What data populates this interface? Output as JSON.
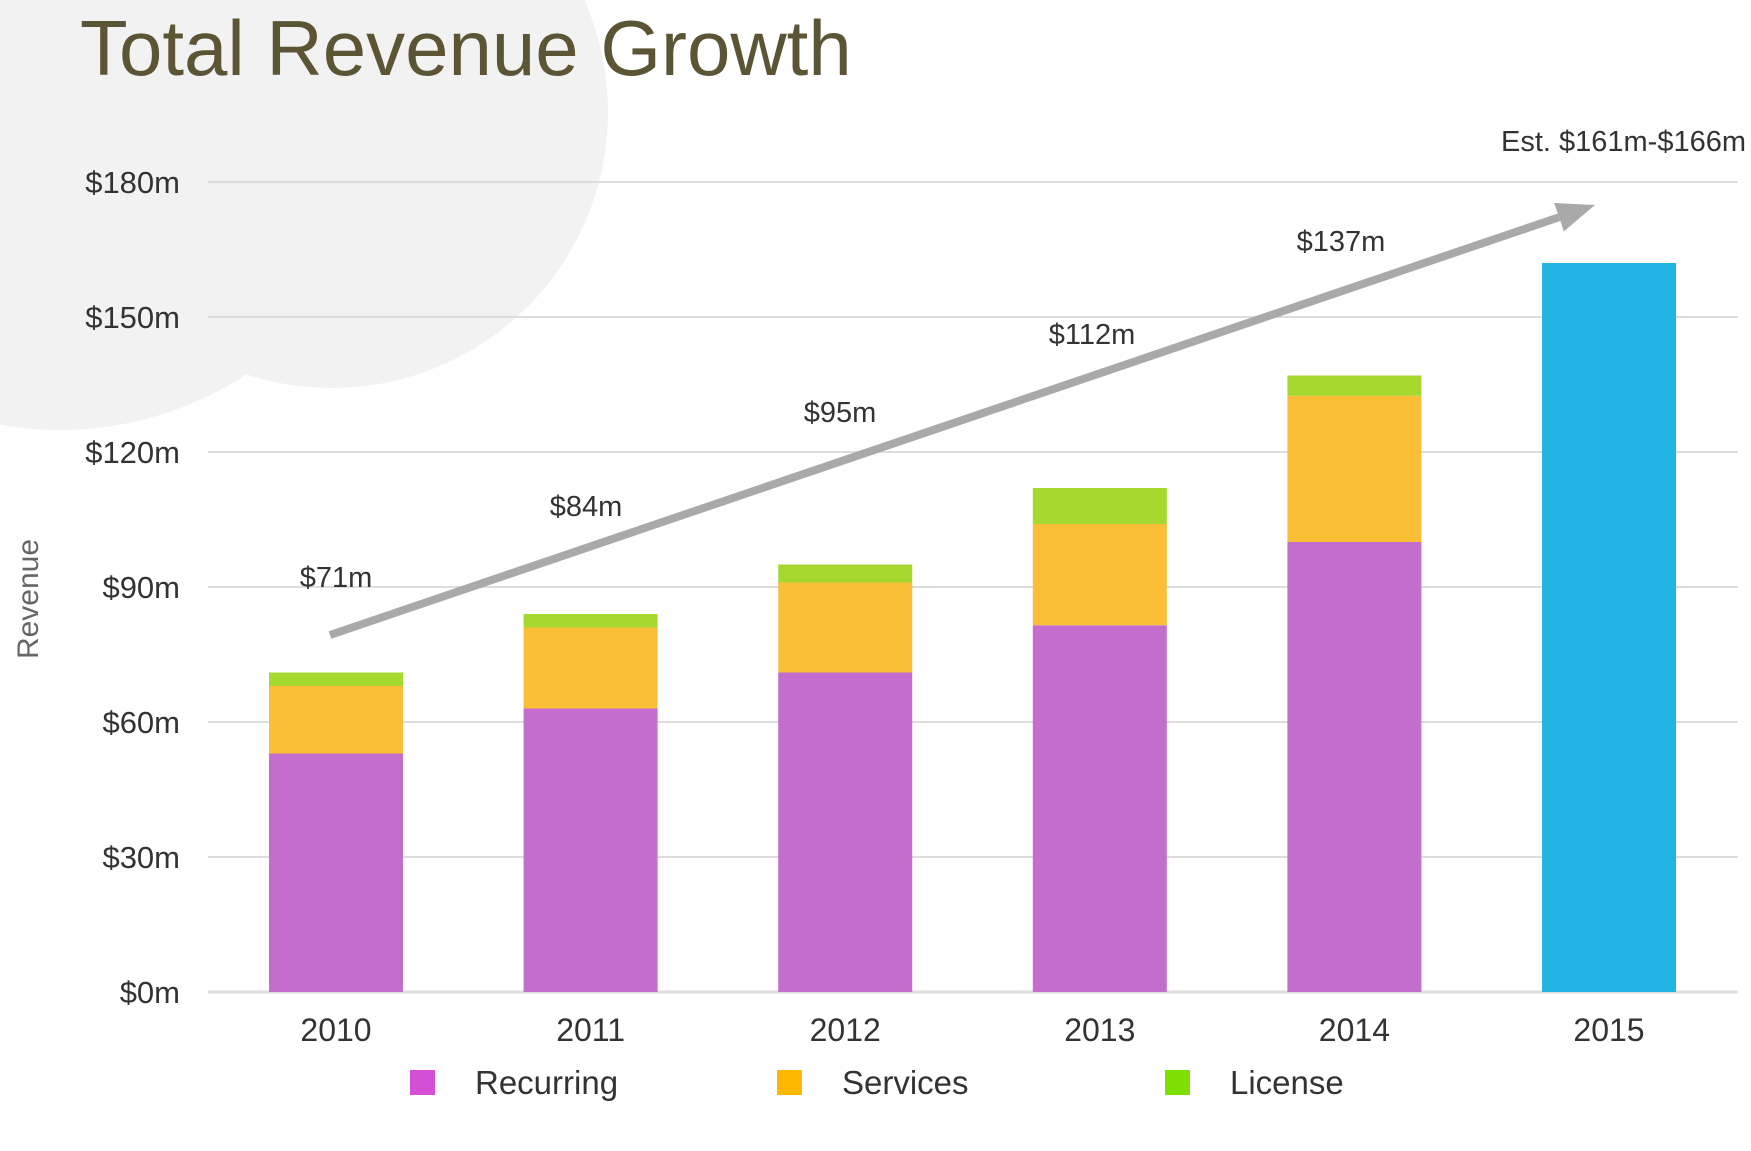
{
  "chart_data": {
    "type": "bar",
    "stacked": true,
    "title": "Total Revenue Growth",
    "ylabel": "Revenue",
    "xlabel": "",
    "ylim": [
      0,
      180
    ],
    "yticks": [
      0,
      30,
      60,
      90,
      120,
      150,
      180
    ],
    "ytick_labels": [
      "$0m",
      "$30m",
      "$60m",
      "$90m",
      "$120m",
      "$150m",
      "$180m"
    ],
    "grid": true,
    "categories": [
      "2010",
      "2011",
      "2012",
      "2013",
      "2014",
      "2015"
    ],
    "series": [
      {
        "name": "Recurring",
        "color": "#c36ecf",
        "values": [
          53,
          63,
          71,
          81.5,
          100,
          null
        ]
      },
      {
        "name": "Services",
        "color": "#fabf37",
        "values": [
          15,
          18,
          20,
          22.5,
          32.5,
          null
        ]
      },
      {
        "name": "License",
        "color": "#a5d92f",
        "values": [
          3,
          3,
          4,
          8,
          4.5,
          null
        ]
      }
    ],
    "estimate": {
      "category": "2015",
      "value": 162,
      "color": "#22b5e4",
      "label": "Est. $161m-$166m"
    },
    "total_labels": [
      "$71m",
      "$84m",
      "$95m",
      "$112m",
      "$137m"
    ],
    "trend_arrow": true,
    "legend": {
      "placement": "bottom",
      "items": [
        {
          "name": "Recurring",
          "color": "#d44fd6"
        },
        {
          "name": "Services",
          "color": "#ffb800"
        },
        {
          "name": "License",
          "color": "#7ee000"
        }
      ]
    },
    "colors": {
      "title": "#5b5535",
      "grid": "#dddddd",
      "text": "#333333",
      "arrow": "#a9a9a9",
      "background_circle": "#f2f2f2"
    }
  }
}
